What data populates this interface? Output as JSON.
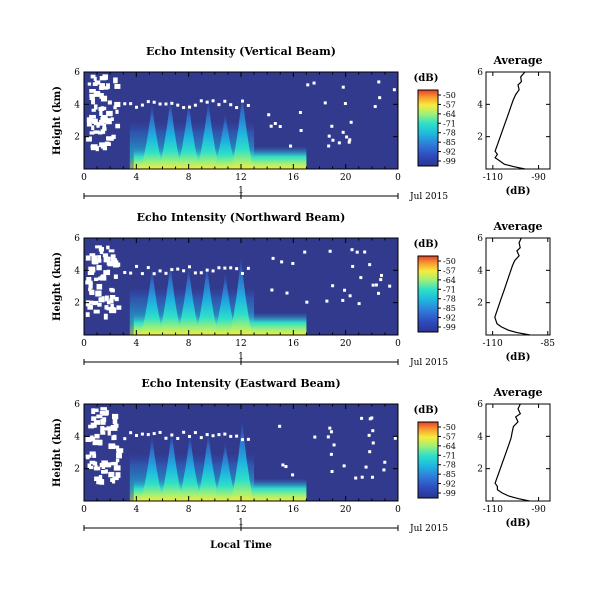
{
  "chart_data": [
    {
      "type": "heatmap",
      "title": "Echo Intensity (Vertical Beam)",
      "ylabel": "Height (km)",
      "xlim": [
        0,
        24
      ],
      "ylim": [
        0,
        6
      ],
      "x_ticks": [
        "0",
        "4",
        "8",
        "12",
        "16",
        "20",
        "0"
      ],
      "y_ticks": [
        "2",
        "4",
        "6"
      ],
      "date_axis": {
        "tick": "1",
        "label": "Jul 2015"
      },
      "colorbar": {
        "unit": "(dB)",
        "ticks": [
          "-50",
          "-57",
          "-64",
          "-71",
          "-78",
          "-85",
          "-92",
          "-99"
        ]
      },
      "spikes": [
        [
          5.2,
          4.2
        ],
        [
          6.6,
          4.5
        ],
        [
          8.0,
          4.3
        ],
        [
          9.5,
          4.4
        ],
        [
          10.8,
          3.6
        ],
        [
          12.1,
          4.8
        ]
      ],
      "average_profile": {
        "title": "Average",
        "xlabel": "(dB)",
        "x_ticks": [
          "-110",
          "-90"
        ],
        "y_ticks": [
          "2",
          "4",
          "6"
        ],
        "xlim": [
          -113,
          -85
        ],
        "ylim": [
          0,
          6
        ],
        "x": [
          -96,
          -97.8,
          -97.5,
          -99,
          -98.5,
          -100,
          -101,
          -102,
          -103,
          -104,
          -105,
          -106,
          -107,
          -108,
          -109,
          -108,
          -109,
          -107,
          -105,
          -101,
          -96
        ],
        "y": [
          6,
          5.7,
          5.4,
          5.2,
          4.9,
          4.6,
          4.3,
          3.9,
          3.5,
          3.1,
          2.7,
          2.3,
          1.9,
          1.5,
          1.1,
          0.9,
          0.7,
          0.5,
          0.3,
          0.15,
          0
        ]
      }
    },
    {
      "type": "heatmap",
      "title": "Echo Intensity (Northward Beam)",
      "ylabel": "Height (km)",
      "xlim": [
        0,
        24
      ],
      "ylim": [
        0,
        6
      ],
      "x_ticks": [
        "0",
        "4",
        "8",
        "12",
        "16",
        "20",
        "0"
      ],
      "y_ticks": [
        "2",
        "4",
        "6"
      ],
      "date_axis": {
        "tick": "1",
        "label": "Jul 2015"
      },
      "colorbar": {
        "unit": "(dB)",
        "ticks": [
          "-50",
          "-57",
          "-64",
          "-71",
          "-78",
          "-85",
          "-92",
          "-99"
        ]
      },
      "spikes": [
        [
          5.2,
          4.3
        ],
        [
          6.6,
          4.6
        ],
        [
          8.0,
          4.4
        ],
        [
          9.4,
          4.5
        ],
        [
          10.8,
          4.0
        ],
        [
          12.0,
          5.0
        ]
      ],
      "average_profile": {
        "title": "Average",
        "xlabel": "(dB)",
        "x_ticks": [
          "-110",
          "-85"
        ],
        "y_ticks": [
          "2",
          "4",
          "6"
        ],
        "xlim": [
          -113,
          -84
        ],
        "ylim": [
          0,
          6
        ],
        "x": [
          -97,
          -98,
          -97.5,
          -99,
          -98,
          -100,
          -101,
          -102,
          -103,
          -104,
          -105,
          -106,
          -107,
          -108,
          -109,
          -108.5,
          -108,
          -106,
          -103,
          -99,
          -93
        ],
        "y": [
          6,
          5.7,
          5.4,
          5.2,
          4.9,
          4.6,
          4.3,
          3.9,
          3.5,
          3.1,
          2.7,
          2.3,
          1.9,
          1.5,
          1.1,
          0.9,
          0.7,
          0.5,
          0.3,
          0.15,
          0
        ]
      }
    },
    {
      "type": "heatmap",
      "title": "Echo Intensity (Eastward Beam)",
      "ylabel": "Height (km)",
      "xlabel": "Local Time",
      "xlim": [
        0,
        24
      ],
      "ylim": [
        0,
        6
      ],
      "x_ticks": [
        "0",
        "4",
        "8",
        "12",
        "16",
        "20",
        "0"
      ],
      "y_ticks": [
        "2",
        "4",
        "6"
      ],
      "date_axis": {
        "tick": "1",
        "label": "Jul 2015"
      },
      "colorbar": {
        "unit": "(dB)",
        "ticks": [
          "-50",
          "-57",
          "-64",
          "-71",
          "-78",
          "-85",
          "-92",
          "-99"
        ]
      },
      "spikes": [
        [
          5.2,
          4.2
        ],
        [
          6.7,
          4.5
        ],
        [
          8.1,
          4.3
        ],
        [
          9.5,
          4.4
        ],
        [
          10.8,
          3.8
        ],
        [
          12.1,
          5.2
        ]
      ],
      "average_profile": {
        "title": "Average",
        "xlabel": "(dB)",
        "x_ticks": [
          "-110",
          "-90"
        ],
        "y_ticks": [
          "2",
          "4",
          "6"
        ],
        "xlim": [
          -113,
          -85
        ],
        "ylim": [
          0,
          6
        ],
        "x": [
          -98,
          -99,
          -98,
          -100,
          -99,
          -101,
          -101.5,
          -102,
          -103,
          -104,
          -105,
          -106,
          -107,
          -108,
          -109,
          -108,
          -108,
          -106,
          -103,
          -99,
          -94
        ],
        "y": [
          6,
          5.7,
          5.4,
          5.2,
          4.9,
          4.6,
          4.3,
          3.9,
          3.5,
          3.1,
          2.7,
          2.3,
          1.9,
          1.5,
          1.1,
          0.9,
          0.7,
          0.5,
          0.3,
          0.15,
          0
        ]
      }
    }
  ],
  "colors": {
    "background": "#313a8c",
    "scale": [
      "#2a3490",
      "#2f4cc0",
      "#2f7bd8",
      "#1fb6e0",
      "#2ee0c8",
      "#9cf07a",
      "#f6ec3c",
      "#f8a030",
      "#e8402a"
    ]
  }
}
